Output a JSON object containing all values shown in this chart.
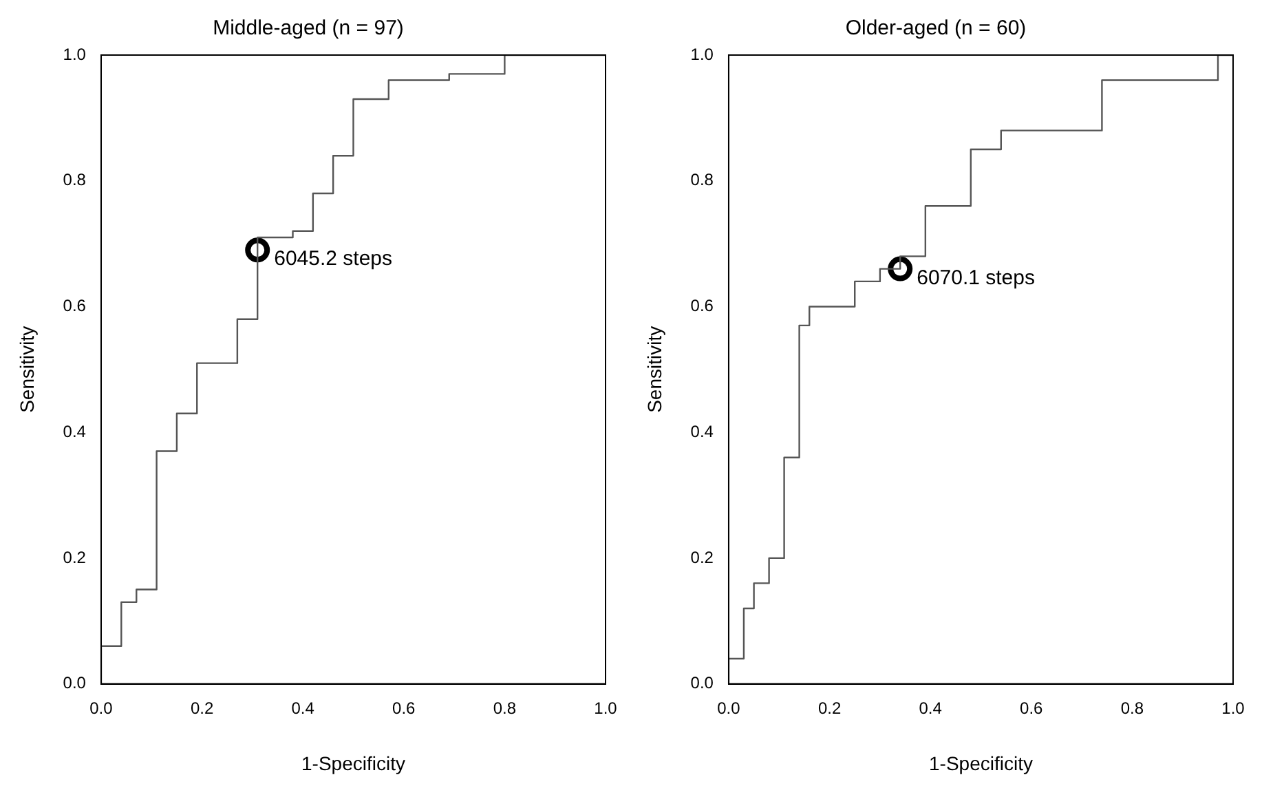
{
  "chart_data": [
    {
      "type": "line",
      "title": "Middle-aged (n = 97)",
      "xlabel": "1-Specificity",
      "ylabel": "Sensitivity",
      "xlim": [
        0,
        1
      ],
      "ylim": [
        0,
        1
      ],
      "xticks": [
        {
          "value": 0,
          "label": "0.0"
        },
        {
          "value": 0.2,
          "label": "0.2"
        },
        {
          "value": 0.4,
          "label": "0.4"
        },
        {
          "value": 0.6,
          "label": "0.6"
        },
        {
          "value": 0.8,
          "label": "0.8"
        },
        {
          "value": 1,
          "label": "1.0"
        }
      ],
      "yticks": [
        {
          "value": 0,
          "label": "0.0"
        },
        {
          "value": 0.2,
          "label": "0.2"
        },
        {
          "value": 0.4,
          "label": "0.4"
        },
        {
          "value": 0.6,
          "label": "0.6"
        },
        {
          "value": 0.8,
          "label": "0.8"
        },
        {
          "value": 1,
          "label": "1.0"
        }
      ],
      "grid": false,
      "legend": false,
      "series": [
        {
          "color": "#555555",
          "marker": "none",
          "x": [
            0,
            0,
            0.04,
            0.04,
            0.07,
            0.07,
            0.11,
            0.11,
            0.15,
            0.15,
            0.19,
            0.19,
            0.27,
            0.27,
            0.31,
            0.31,
            0.38,
            0.38,
            0.42,
            0.42,
            0.46,
            0.46,
            0.5,
            0.5,
            0.57,
            0.57,
            0.69,
            0.69,
            0.8,
            0.8,
            1
          ],
          "values": [
            0,
            0.06,
            0.06,
            0.13,
            0.13,
            0.15,
            0.15,
            0.37,
            0.37,
            0.43,
            0.43,
            0.51,
            0.51,
            0.58,
            0.58,
            0.71,
            0.71,
            0.72,
            0.72,
            0.78,
            0.78,
            0.84,
            0.84,
            0.93,
            0.93,
            0.96,
            0.96,
            0.97,
            0.97,
            1,
            1
          ]
        },
        {
          "type": "scatter",
          "color": "#000000",
          "marker": "circle",
          "x": [
            0.31
          ],
          "values": [
            0.69
          ]
        }
      ],
      "annotations": [
        {
          "text": "6045.2 steps",
          "x": 0.31,
          "y": 0.69
        }
      ]
    },
    {
      "type": "line",
      "title": "Older-aged (n = 60)",
      "xlabel": "1-Specificity",
      "ylabel": "Sensitivity",
      "xlim": [
        0,
        1
      ],
      "ylim": [
        0,
        1
      ],
      "xticks": [
        {
          "value": 0,
          "label": "0.0"
        },
        {
          "value": 0.2,
          "label": "0.2"
        },
        {
          "value": 0.4,
          "label": "0.4"
        },
        {
          "value": 0.6,
          "label": "0.6"
        },
        {
          "value": 0.8,
          "label": "0.8"
        },
        {
          "value": 1,
          "label": "1.0"
        }
      ],
      "yticks": [
        {
          "value": 0,
          "label": "0.0"
        },
        {
          "value": 0.2,
          "label": "0.2"
        },
        {
          "value": 0.4,
          "label": "0.4"
        },
        {
          "value": 0.6,
          "label": "0.6"
        },
        {
          "value": 0.8,
          "label": "0.8"
        },
        {
          "value": 1,
          "label": "1.0"
        }
      ],
      "grid": false,
      "legend": false,
      "series": [
        {
          "color": "#555555",
          "marker": "none",
          "x": [
            0,
            0,
            0.03,
            0.03,
            0.05,
            0.05,
            0.08,
            0.08,
            0.11,
            0.11,
            0.14,
            0.14,
            0.16,
            0.16,
            0.25,
            0.25,
            0.3,
            0.3,
            0.34,
            0.34,
            0.39,
            0.39,
            0.48,
            0.48,
            0.54,
            0.54,
            0.74,
            0.74,
            0.97,
            0.97,
            1
          ],
          "values": [
            0,
            0.04,
            0.04,
            0.12,
            0.12,
            0.16,
            0.16,
            0.2,
            0.2,
            0.36,
            0.36,
            0.57,
            0.57,
            0.6,
            0.6,
            0.64,
            0.64,
            0.66,
            0.66,
            0.68,
            0.68,
            0.76,
            0.76,
            0.85,
            0.85,
            0.88,
            0.88,
            0.96,
            0.96,
            1,
            1
          ]
        },
        {
          "type": "scatter",
          "color": "#000000",
          "marker": "circle",
          "x": [
            0.34
          ],
          "values": [
            0.66
          ]
        }
      ],
      "annotations": [
        {
          "text": "6070.1 steps",
          "x": 0.34,
          "y": 0.66
        }
      ]
    }
  ]
}
